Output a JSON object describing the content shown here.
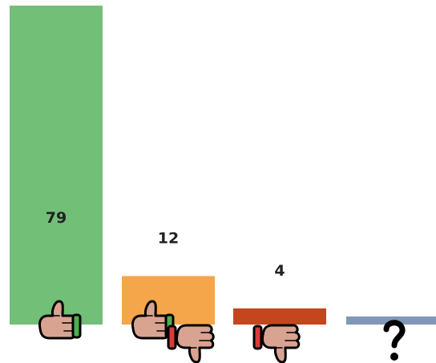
{
  "chart_data": {
    "type": "bar",
    "categories": [
      "thumbs-up",
      "mixed",
      "thumbs-down",
      "unknown"
    ],
    "values": [
      79,
      12,
      4,
      2
    ],
    "data_labels": [
      "79",
      "12",
      "4",
      ""
    ],
    "colors": [
      "#72BF78",
      "#F5A54A",
      "#C4461F",
      "#8097B7"
    ],
    "icons": [
      [
        "thumbs-up-icon"
      ],
      [
        "thumbs-up-icon",
        "thumbs-down-icon"
      ],
      [
        "thumbs-down-icon"
      ],
      [
        "question-mark-icon"
      ]
    ],
    "ylim": [
      0,
      79
    ],
    "grid": false,
    "legend": "none"
  }
}
